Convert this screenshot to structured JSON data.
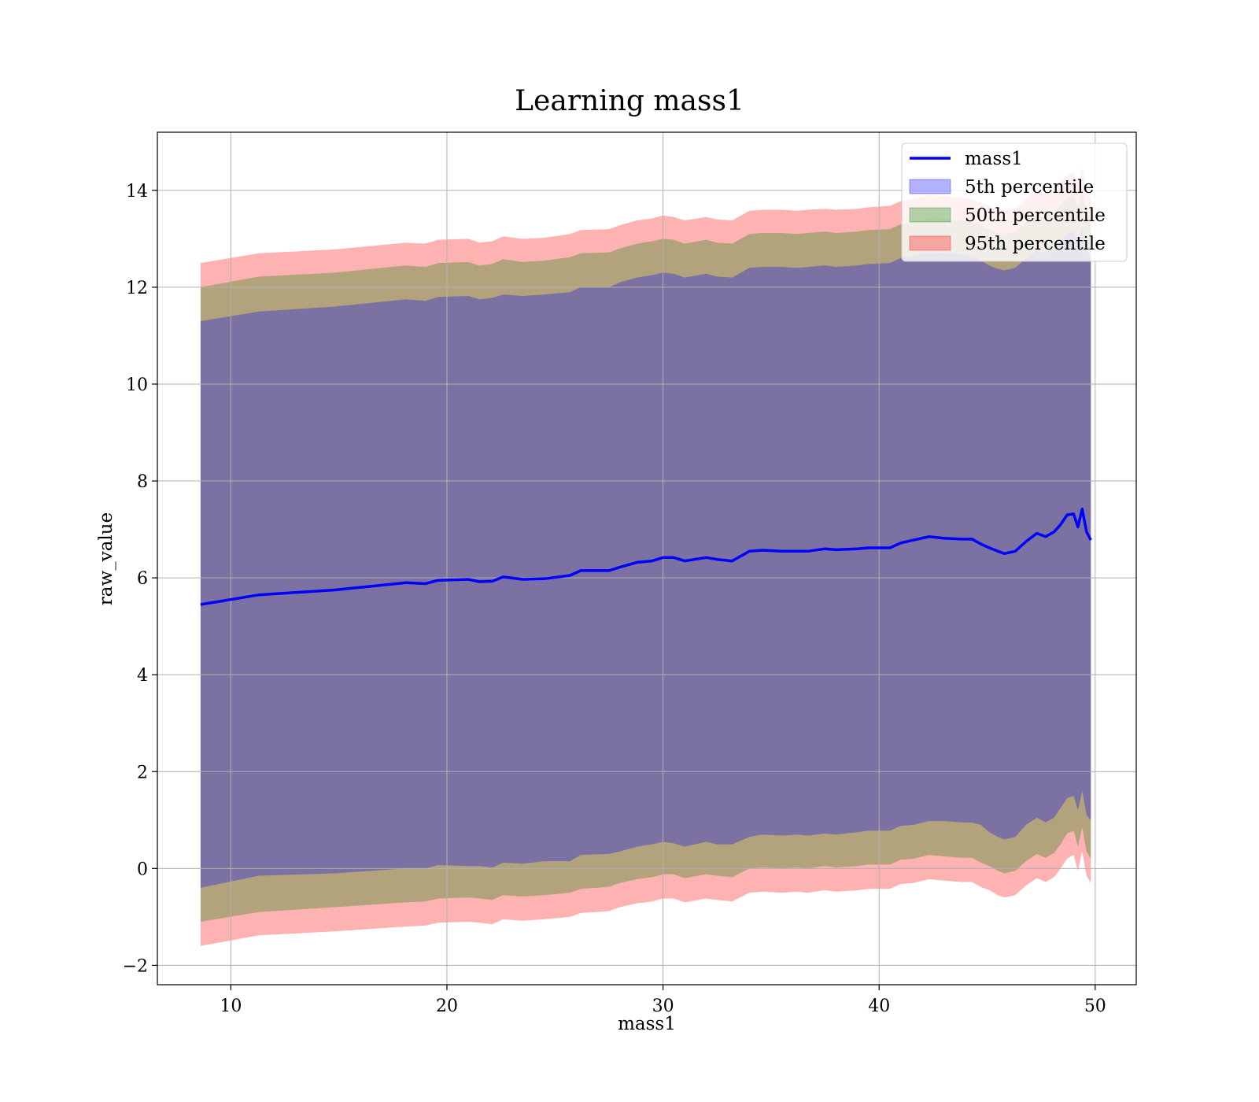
{
  "chart_data": {
    "type": "area",
    "title": "Learning mass1",
    "xlabel": "mass1",
    "ylabel": "raw_value",
    "xlim": [
      6.6,
      51.9
    ],
    "ylim": [
      -2.4,
      15.2
    ],
    "xticks": [
      10,
      20,
      30,
      40,
      50
    ],
    "yticks": [
      -2,
      0,
      2,
      4,
      6,
      8,
      10,
      12,
      14
    ],
    "xtick_labels": [
      "10",
      "20",
      "30",
      "40",
      "50"
    ],
    "ytick_labels": [
      "−2",
      "0",
      "2",
      "4",
      "6",
      "8",
      "10",
      "12",
      "14"
    ],
    "grid": true,
    "legend_position": "top-right",
    "colors": {
      "line": "#0000ff",
      "band_5": "#0000ff",
      "band_50": "#008000",
      "band_95": "#ff0000",
      "grid": "#b0b0b0"
    },
    "x": [
      8.6,
      11.3,
      14.8,
      18.1,
      19.0,
      19.6,
      21.0,
      21.5,
      22.1,
      22.6,
      23.5,
      24.5,
      25.7,
      26.2,
      27.5,
      28.0,
      28.8,
      29.5,
      30.0,
      30.5,
      31.0,
      32.0,
      32.5,
      33.2,
      34.0,
      34.6,
      35.5,
      36.2,
      36.7,
      37.5,
      38.0,
      39.0,
      39.5,
      40.5,
      41.0,
      41.6,
      42.3,
      43.0,
      43.8,
      44.3,
      44.7,
      45.1,
      45.5,
      45.8,
      46.3,
      46.8,
      47.3,
      47.7,
      48.1,
      48.4,
      48.7,
      49.0,
      49.2,
      49.4,
      49.6,
      49.8
    ],
    "series": [
      {
        "name": "mass1",
        "values": [
          5.45,
          5.65,
          5.75,
          5.9,
          5.88,
          5.95,
          5.97,
          5.92,
          5.93,
          6.02,
          5.97,
          5.98,
          6.05,
          6.15,
          6.15,
          6.22,
          6.32,
          6.35,
          6.42,
          6.42,
          6.35,
          6.42,
          6.38,
          6.35,
          6.55,
          6.57,
          6.55,
          6.55,
          6.55,
          6.6,
          6.58,
          6.6,
          6.62,
          6.62,
          6.72,
          6.78,
          6.85,
          6.82,
          6.8,
          6.8,
          6.7,
          6.62,
          6.55,
          6.5,
          6.55,
          6.75,
          6.92,
          6.85,
          6.95,
          7.1,
          7.3,
          7.32,
          7.05,
          7.42,
          6.95,
          6.78
        ]
      },
      {
        "name": "5th percentile",
        "lower": [
          -0.4,
          -0.15,
          -0.1,
          0.0,
          0.0,
          0.07,
          0.05,
          0.05,
          0.02,
          0.12,
          0.1,
          0.15,
          0.15,
          0.28,
          0.3,
          0.35,
          0.45,
          0.5,
          0.55,
          0.52,
          0.45,
          0.55,
          0.5,
          0.5,
          0.65,
          0.7,
          0.68,
          0.7,
          0.68,
          0.72,
          0.7,
          0.75,
          0.78,
          0.78,
          0.88,
          0.9,
          0.98,
          0.98,
          0.95,
          0.95,
          0.9,
          0.75,
          0.65,
          0.6,
          0.65,
          0.9,
          1.05,
          0.95,
          1.05,
          1.25,
          1.45,
          1.5,
          1.2,
          1.6,
          1.1,
          1.0
        ],
        "upper": [
          11.3,
          11.5,
          11.6,
          11.75,
          11.72,
          11.8,
          11.82,
          11.75,
          11.78,
          11.85,
          11.82,
          11.85,
          11.9,
          12.0,
          12.0,
          12.1,
          12.2,
          12.25,
          12.3,
          12.28,
          12.2,
          12.28,
          12.22,
          12.2,
          12.4,
          12.42,
          12.42,
          12.4,
          12.42,
          12.45,
          12.42,
          12.45,
          12.48,
          12.5,
          12.6,
          12.65,
          12.72,
          12.7,
          12.68,
          12.65,
          12.55,
          12.45,
          12.38,
          12.35,
          12.4,
          12.6,
          12.75,
          12.7,
          12.8,
          12.95,
          13.1,
          13.15,
          12.9,
          13.25,
          12.8,
          12.6
        ]
      },
      {
        "name": "50th percentile",
        "lower": [
          -1.1,
          -0.9,
          -0.8,
          -0.7,
          -0.68,
          -0.62,
          -0.6,
          -0.62,
          -0.65,
          -0.55,
          -0.58,
          -0.55,
          -0.5,
          -0.42,
          -0.38,
          -0.3,
          -0.22,
          -0.18,
          -0.12,
          -0.12,
          -0.2,
          -0.12,
          -0.15,
          -0.18,
          0.0,
          0.02,
          0.0,
          0.02,
          0.0,
          0.05,
          0.02,
          0.05,
          0.08,
          0.08,
          0.18,
          0.2,
          0.28,
          0.25,
          0.22,
          0.22,
          0.12,
          0.05,
          -0.05,
          -0.1,
          -0.05,
          0.15,
          0.3,
          0.22,
          0.32,
          0.5,
          0.72,
          0.78,
          0.45,
          0.85,
          0.35,
          0.2
        ],
        "upper": [
          12.0,
          12.22,
          12.3,
          12.45,
          12.42,
          12.5,
          12.52,
          12.45,
          12.48,
          12.58,
          12.52,
          12.55,
          12.62,
          12.7,
          12.72,
          12.8,
          12.9,
          12.95,
          13.0,
          12.98,
          12.9,
          12.98,
          12.92,
          12.9,
          13.1,
          13.12,
          13.12,
          13.1,
          13.12,
          13.15,
          13.12,
          13.15,
          13.18,
          13.2,
          13.3,
          13.35,
          13.42,
          13.4,
          13.38,
          13.35,
          13.28,
          13.2,
          13.12,
          13.1,
          13.15,
          13.35,
          13.5,
          13.45,
          13.55,
          13.7,
          13.85,
          13.9,
          13.65,
          14.0,
          13.55,
          13.35
        ]
      },
      {
        "name": "95th percentile",
        "lower": [
          -1.6,
          -1.38,
          -1.3,
          -1.2,
          -1.18,
          -1.12,
          -1.1,
          -1.12,
          -1.15,
          -1.05,
          -1.08,
          -1.05,
          -1.0,
          -0.92,
          -0.88,
          -0.8,
          -0.72,
          -0.68,
          -0.62,
          -0.62,
          -0.7,
          -0.62,
          -0.65,
          -0.68,
          -0.5,
          -0.48,
          -0.5,
          -0.48,
          -0.5,
          -0.45,
          -0.48,
          -0.45,
          -0.42,
          -0.42,
          -0.32,
          -0.3,
          -0.22,
          -0.25,
          -0.28,
          -0.28,
          -0.38,
          -0.45,
          -0.55,
          -0.6,
          -0.55,
          -0.35,
          -0.2,
          -0.28,
          -0.18,
          0.0,
          0.2,
          0.28,
          -0.05,
          0.35,
          -0.15,
          -0.3
        ],
        "upper": [
          12.5,
          12.7,
          12.78,
          12.92,
          12.9,
          12.98,
          13.0,
          12.92,
          12.95,
          13.05,
          13.0,
          13.02,
          13.1,
          13.18,
          13.2,
          13.28,
          13.38,
          13.42,
          13.48,
          13.45,
          13.38,
          13.45,
          13.4,
          13.38,
          13.58,
          13.6,
          13.6,
          13.58,
          13.6,
          13.62,
          13.6,
          13.62,
          13.65,
          13.68,
          13.78,
          13.82,
          13.9,
          13.88,
          13.85,
          13.82,
          13.75,
          13.68,
          13.6,
          13.58,
          13.62,
          13.82,
          13.98,
          13.92,
          14.02,
          14.18,
          14.32,
          14.38,
          14.12,
          14.48,
          14.02,
          13.82
        ]
      }
    ]
  }
}
